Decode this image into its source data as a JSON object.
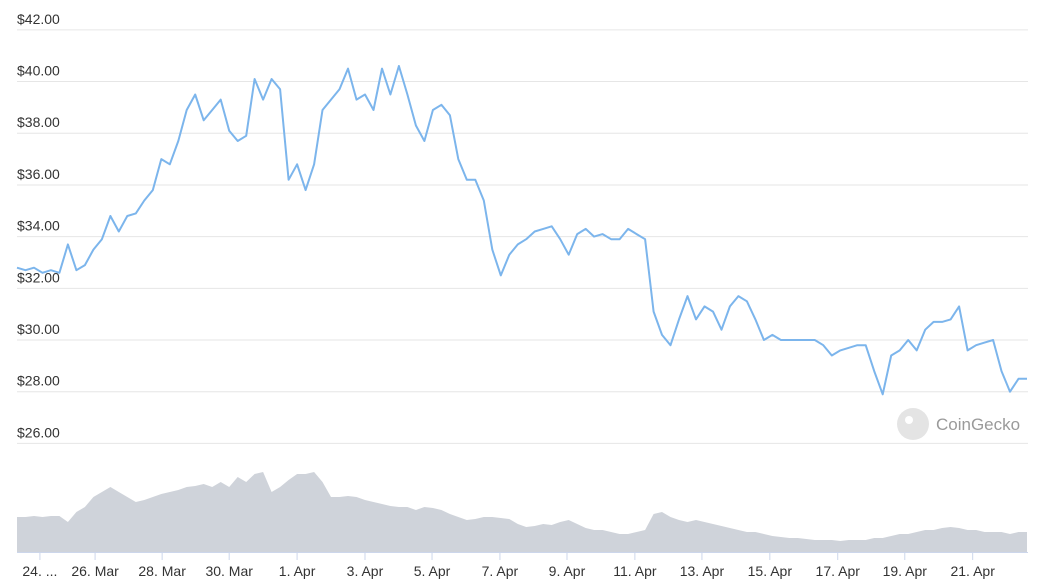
{
  "chart_data": {
    "type": "line",
    "watermark": "CoinGecko",
    "series": [
      {
        "name": "Price",
        "color": "#7cb5ec",
        "values": [
          32.8,
          32.7,
          32.8,
          32.6,
          32.7,
          32.6,
          33.7,
          32.7,
          32.9,
          33.5,
          33.9,
          34.8,
          34.2,
          34.8,
          34.9,
          35.4,
          35.8,
          37.0,
          36.8,
          37.7,
          38.9,
          39.5,
          38.5,
          38.9,
          39.3,
          38.1,
          37.7,
          37.9,
          40.1,
          39.3,
          40.1,
          39.7,
          36.2,
          36.8,
          35.8,
          36.8,
          38.9,
          39.3,
          39.7,
          40.5,
          39.3,
          39.5,
          38.9,
          40.5,
          39.5,
          40.6,
          39.5,
          38.3,
          37.7,
          38.9,
          39.1,
          38.7,
          37.0,
          36.2,
          36.2,
          35.4,
          33.5,
          32.5,
          33.3,
          33.7,
          33.9,
          34.2,
          34.3,
          34.4,
          33.9,
          33.3,
          34.1,
          34.3,
          34.0,
          34.1,
          33.9,
          33.9,
          34.3,
          34.1,
          33.9,
          31.1,
          30.2,
          29.8,
          30.8,
          31.7,
          30.8,
          31.3,
          31.1,
          30.4,
          31.3,
          31.7,
          31.5,
          30.8,
          30.0,
          30.2,
          30.0,
          30.0,
          30.0,
          30.0,
          30.0,
          29.8,
          29.4,
          29.6,
          29.7,
          29.8,
          29.8,
          28.8,
          27.9,
          29.4,
          29.6,
          30.0,
          29.6,
          30.4,
          30.7,
          30.7,
          30.8,
          31.3,
          29.6,
          29.8,
          29.9,
          30.0,
          28.8,
          28.0,
          28.5,
          28.5
        ]
      },
      {
        "name": "Volume",
        "color": "#cfd3da",
        "axis": "y2",
        "values": [
          35,
          35,
          36,
          35,
          36,
          36,
          30,
          40,
          45,
          55,
          60,
          65,
          60,
          55,
          50,
          52,
          55,
          58,
          60,
          62,
          65,
          66,
          68,
          65,
          70,
          65,
          75,
          70,
          78,
          80,
          60,
          65,
          72,
          78,
          78,
          80,
          70,
          55,
          55,
          56,
          55,
          52,
          50,
          48,
          46,
          45,
          45,
          42,
          45,
          44,
          42,
          38,
          35,
          32,
          33,
          35,
          35,
          34,
          33,
          28,
          25,
          26,
          28,
          27,
          30,
          32,
          28,
          24,
          22,
          22,
          20,
          18,
          18,
          20,
          22,
          38,
          40,
          35,
          32,
          30,
          32,
          30,
          28,
          26,
          24,
          22,
          20,
          20,
          18,
          16,
          15,
          14,
          14,
          13,
          12,
          12,
          12,
          11,
          12,
          12,
          12,
          14,
          14,
          16,
          18,
          18,
          20,
          22,
          22,
          24,
          25,
          24,
          22,
          22,
          20,
          20,
          20,
          18,
          20,
          20
        ]
      }
    ],
    "xlim": [
      0,
      119
    ],
    "xticks": [
      {
        "value": 2.7,
        "label": "24. ..."
      },
      {
        "value": 9.2,
        "label": "26. Mar"
      },
      {
        "value": 17.1,
        "label": "28. Mar"
      },
      {
        "value": 25.0,
        "label": "30. Mar"
      },
      {
        "value": 33.0,
        "label": "1. Apr"
      },
      {
        "value": 41.0,
        "label": "3. Apr"
      },
      {
        "value": 48.9,
        "label": "5. Apr"
      },
      {
        "value": 56.9,
        "label": "7. Apr"
      },
      {
        "value": 64.8,
        "label": "9. Apr"
      },
      {
        "value": 72.8,
        "label": "11. Apr"
      },
      {
        "value": 80.7,
        "label": "13. Apr"
      },
      {
        "value": 88.7,
        "label": "15. Apr"
      },
      {
        "value": 96.7,
        "label": "17. Apr"
      },
      {
        "value": 104.6,
        "label": "19. Apr"
      },
      {
        "value": 112.6,
        "label": "21. Apr"
      }
    ],
    "ylim": [
      21.8,
      43
    ],
    "yticks": [
      {
        "value": 26,
        "label": "$26.00"
      },
      {
        "value": 28,
        "label": "$28.00"
      },
      {
        "value": 30,
        "label": "$30.00"
      },
      {
        "value": 32,
        "label": "$32.00"
      },
      {
        "value": 34,
        "label": "$34.00"
      },
      {
        "value": 36,
        "label": "$36.00"
      },
      {
        "value": 38,
        "label": "$38.00"
      },
      {
        "value": 40,
        "label": "$40.00"
      },
      {
        "value": 42,
        "label": "$42.00"
      }
    ],
    "y2lim": [
      0,
      100
    ],
    "grid": true
  }
}
